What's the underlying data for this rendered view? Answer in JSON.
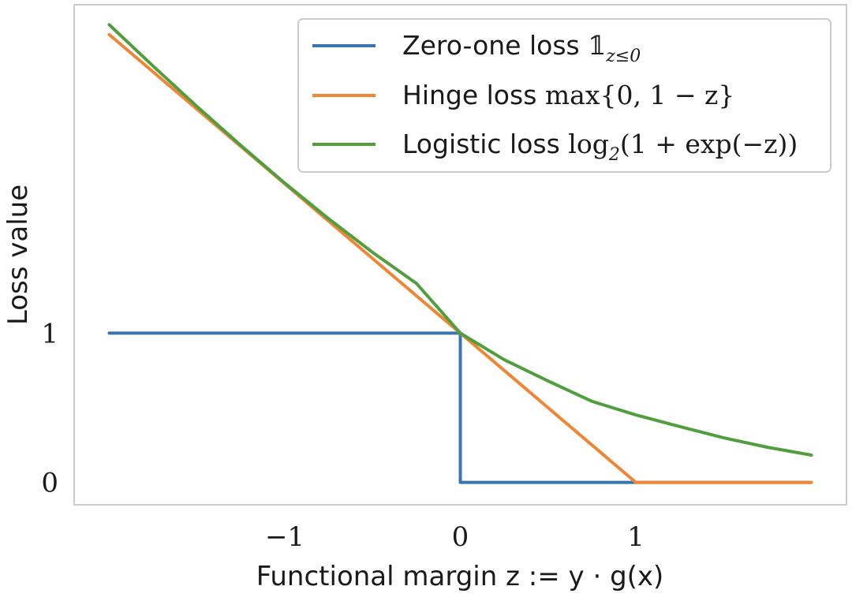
{
  "chart_data": {
    "type": "line",
    "title": "",
    "xlabel": "Functional margin z := y · g(x)",
    "ylabel": "Loss value",
    "xlim": [
      -2.2,
      2.2
    ],
    "ylim": [
      -0.15,
      3.2
    ],
    "xticks": [
      {
        "value": -1,
        "label": "−1"
      },
      {
        "value": 0,
        "label": "0"
      },
      {
        "value": 1,
        "label": "1"
      }
    ],
    "yticks": [
      {
        "value": 0,
        "label": "0"
      },
      {
        "value": 1,
        "label": "1"
      }
    ],
    "grid": false,
    "legend_position": "top-right",
    "series": [
      {
        "name": "Zero-one loss 𝟙z≤0",
        "legend_text": "Zero-one loss ",
        "legend_math": "𝟙",
        "legend_sub": "z≤0",
        "color": "#3b75af",
        "x": [
          -2,
          0,
          0.0001,
          2
        ],
        "y": [
          1,
          1,
          0,
          0
        ]
      },
      {
        "name": "Hinge loss max{0, 1 − z}",
        "legend_text": "Hinge loss ",
        "legend_math": "max{0, 1 − z}",
        "legend_sub": "",
        "color": "#ef8636",
        "x": [
          -2,
          -1.5,
          -1,
          -0.5,
          0,
          0.5,
          1,
          1.5,
          2
        ],
        "y": [
          3,
          2.5,
          2,
          1.5,
          1,
          0.5,
          0,
          0,
          0
        ]
      },
      {
        "name": "Logistic loss log2(1 + exp(−z))",
        "legend_text": "Logistic loss ",
        "legend_math": "log",
        "legend_sub": "2",
        "legend_math_tail": "(1 + exp(−z))",
        "color": "#519e3e",
        "x": [
          -2,
          -1.75,
          -1.5,
          -1.25,
          -1,
          -0.75,
          -0.5,
          -0.25,
          0,
          0.25,
          0.5,
          0.75,
          1,
          1.25,
          1.5,
          1.75,
          2
        ],
        "y": [
          3.066,
          2.789,
          2.518,
          2.257,
          2.005,
          1.766,
          1.541,
          1.333,
          1.0,
          0.822,
          0.679,
          0.543,
          0.452,
          0.374,
          0.299,
          0.235,
          0.183
        ]
      }
    ]
  }
}
